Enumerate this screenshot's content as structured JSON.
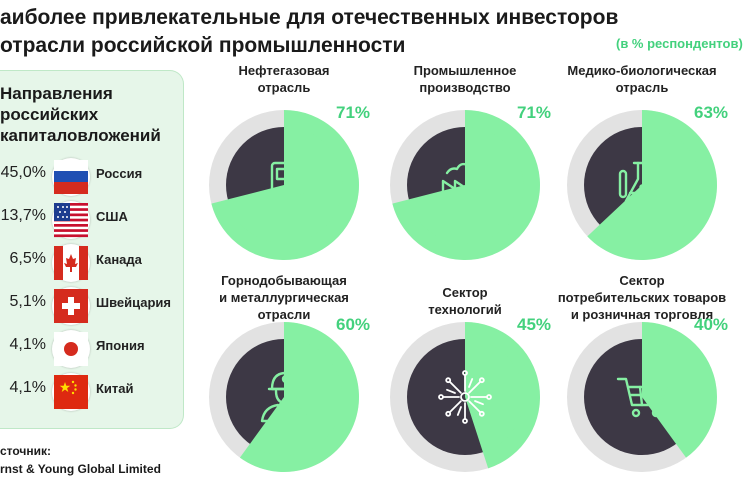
{
  "header": {
    "title_line1": "аиболее привлекательные для отечественных инвесторов",
    "title_line2": "отрасли российской промышленности",
    "unit": "(в % респондентов)"
  },
  "panel": {
    "title_line1": "Направления",
    "title_line2": "российских",
    "title_line3": "капиталовложений",
    "countries": [
      {
        "value": "45,0%",
        "name": "Россия",
        "flag": "russia-flag-icon"
      },
      {
        "value": "13,7%",
        "name": "США",
        "flag": "usa-flag-icon"
      },
      {
        "value": "6,5%",
        "name": "Канада",
        "flag": "canada-flag-icon"
      },
      {
        "value": "5,1%",
        "name": "Швейцария",
        "flag": "switzerland-flag-icon"
      },
      {
        "value": "4,1%",
        "name": "Япония",
        "flag": "japan-flag-icon"
      },
      {
        "value": "4,1%",
        "name": "Китай",
        "flag": "china-flag-icon"
      }
    ]
  },
  "source": {
    "line1": "сточник:",
    "line2": "rnst & Young Global Limited"
  },
  "colors": {
    "accent": "#43d17d",
    "ring_green": "#86f0a3",
    "ring_gray": "#e2e2e2",
    "inner_dark": "#3d3845",
    "panel_bg": "#e6f6e9"
  },
  "chart_data": {
    "type": "pie",
    "unit": "в % респондентов",
    "categories": [
      [
        "Нефтегазовая",
        "отрасль"
      ],
      [
        "Промышленное",
        "производство"
      ],
      [
        "Медико-биологическая",
        "отрасль"
      ],
      [
        "Горнодобывающая",
        "и металлургическая",
        "отрасли"
      ],
      [
        "Сектор",
        "технологий"
      ],
      [
        "Сектор",
        "потребительских товаров",
        "и розничная торговля"
      ]
    ],
    "values": [
      71,
      71,
      63,
      60,
      45,
      40
    ],
    "value_labels": [
      "71%",
      "71%",
      "63%",
      "60%",
      "45%",
      "40%"
    ],
    "icons": [
      "fuel-pump-icon",
      "factory-icon",
      "flask-icon",
      "miner-icon",
      "circuit-icon",
      "shopping-cart-icon"
    ]
  }
}
